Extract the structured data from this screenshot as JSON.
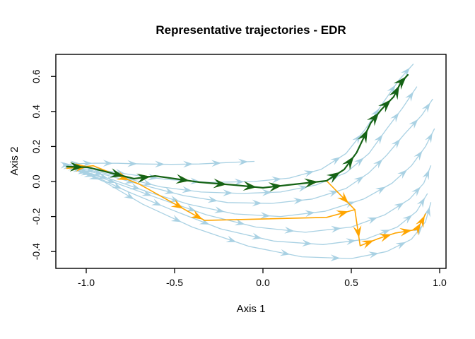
{
  "chart_data": {
    "type": "line",
    "title": "Representative trajectories - EDR",
    "xlabel": "Axis 1",
    "ylabel": "Axis 2",
    "xlim": [
      -1.172,
      1.036
    ],
    "ylim": [
      -0.496,
      0.726
    ],
    "grid": false,
    "legend": "none",
    "xticks": {
      "values": [
        -1.0,
        -0.5,
        0.0,
        0.5,
        1.0
      ],
      "labels": [
        "-1.0",
        "-0.5",
        "0.0",
        "0.5",
        "1.0"
      ]
    },
    "yticks": {
      "values": [
        -0.4,
        -0.2,
        0.0,
        0.2,
        0.4,
        0.6
      ],
      "labels": [
        "-0.4",
        "-0.2",
        "0.0",
        "0.2",
        "0.4",
        "0.6"
      ]
    },
    "colors": {
      "background": "#ffffff",
      "axis": "#000000",
      "regular_trajectory": "#A9D1E3",
      "highlight_green": "#156315",
      "highlight_orange": "#FFA500"
    },
    "series": [
      {
        "name": "trajectory-1",
        "role": "regular",
        "points": [
          [
            -1.13,
            0.095
          ],
          [
            -1.08,
            0.1
          ],
          [
            -1.02,
            0.103
          ],
          [
            -0.95,
            0.105
          ],
          [
            -0.82,
            0.104
          ],
          [
            -0.68,
            0.1
          ],
          [
            -0.52,
            0.098
          ],
          [
            -0.36,
            0.1
          ],
          [
            -0.2,
            0.108
          ],
          [
            -0.05,
            0.115
          ]
        ]
      },
      {
        "name": "trajectory-2",
        "role": "regular",
        "points": [
          [
            -1.12,
            0.088
          ],
          [
            -1.06,
            0.082
          ],
          [
            -0.98,
            0.076
          ],
          [
            -0.88,
            0.06
          ],
          [
            -0.75,
            0.04
          ],
          [
            -0.55,
            0.012
          ],
          [
            -0.3,
            -0.005
          ],
          [
            -0.05,
            0.0
          ],
          [
            0.15,
            0.02
          ],
          [
            0.33,
            0.07
          ],
          [
            0.47,
            0.16
          ],
          [
            0.58,
            0.3
          ],
          [
            0.68,
            0.45
          ],
          [
            0.77,
            0.58
          ],
          [
            0.85,
            0.67
          ]
        ]
      },
      {
        "name": "trajectory-3",
        "role": "regular",
        "points": [
          [
            -1.1,
            0.082
          ],
          [
            -1.03,
            0.072
          ],
          [
            -0.93,
            0.055
          ],
          [
            -0.78,
            0.02
          ],
          [
            -0.58,
            -0.03
          ],
          [
            -0.35,
            -0.06
          ],
          [
            -0.12,
            -0.068
          ],
          [
            0.1,
            -0.06
          ],
          [
            0.3,
            -0.02
          ],
          [
            0.47,
            0.05
          ],
          [
            0.6,
            0.16
          ],
          [
            0.7,
            0.3
          ],
          [
            0.79,
            0.42
          ],
          [
            0.87,
            0.54
          ]
        ]
      },
      {
        "name": "trajectory-4",
        "role": "regular",
        "points": [
          [
            -1.08,
            0.075
          ],
          [
            -1.0,
            0.06
          ],
          [
            -0.88,
            0.035
          ],
          [
            -0.68,
            -0.02
          ],
          [
            -0.45,
            -0.08
          ],
          [
            -0.2,
            -0.12
          ],
          [
            0.05,
            -0.125
          ],
          [
            0.28,
            -0.1
          ],
          [
            0.47,
            -0.04
          ],
          [
            0.6,
            0.05
          ],
          [
            0.7,
            0.15
          ],
          [
            0.8,
            0.27
          ],
          [
            0.9,
            0.38
          ],
          [
            0.96,
            0.47
          ]
        ]
      },
      {
        "name": "trajectory-5",
        "role": "regular",
        "points": [
          [
            -1.06,
            0.065
          ],
          [
            -0.97,
            0.045
          ],
          [
            -0.85,
            0.01
          ],
          [
            -0.65,
            -0.06
          ],
          [
            -0.42,
            -0.13
          ],
          [
            -0.16,
            -0.185
          ],
          [
            0.1,
            -0.2
          ],
          [
            0.35,
            -0.17
          ],
          [
            0.57,
            -0.1
          ],
          [
            0.73,
            -0.01
          ],
          [
            0.84,
            0.09
          ],
          [
            0.92,
            0.2
          ],
          [
            0.97,
            0.3
          ]
        ]
      },
      {
        "name": "trajectory-6",
        "role": "regular",
        "points": [
          [
            -1.05,
            0.06
          ],
          [
            -0.95,
            0.035
          ],
          [
            -0.8,
            -0.02
          ],
          [
            -0.58,
            -0.1
          ],
          [
            -0.32,
            -0.19
          ],
          [
            -0.04,
            -0.26
          ],
          [
            0.24,
            -0.29
          ],
          [
            0.5,
            -0.26
          ],
          [
            0.69,
            -0.19
          ],
          [
            0.83,
            -0.1
          ],
          [
            0.91,
            -0.01
          ],
          [
            0.95,
            0.09
          ]
        ]
      },
      {
        "name": "trajectory-7",
        "role": "regular",
        "points": [
          [
            -1.04,
            0.055
          ],
          [
            -0.93,
            0.02
          ],
          [
            -0.76,
            -0.06
          ],
          [
            -0.52,
            -0.16
          ],
          [
            -0.24,
            -0.27
          ],
          [
            0.06,
            -0.34
          ],
          [
            0.34,
            -0.36
          ],
          [
            0.58,
            -0.33
          ],
          [
            0.76,
            -0.26
          ],
          [
            0.87,
            -0.17
          ],
          [
            0.93,
            -0.07
          ]
        ]
      },
      {
        "name": "trajectory-8",
        "role": "regular",
        "points": [
          [
            -1.02,
            0.05
          ],
          [
            -0.9,
            0.0
          ],
          [
            -0.68,
            -0.13
          ],
          [
            -0.4,
            -0.26
          ],
          [
            -0.08,
            -0.37
          ],
          [
            0.22,
            -0.43
          ],
          [
            0.5,
            -0.44
          ],
          [
            0.7,
            -0.4
          ],
          [
            0.84,
            -0.33
          ],
          [
            0.92,
            -0.23
          ],
          [
            0.95,
            -0.12
          ]
        ]
      },
      {
        "name": "representative-orange-1",
        "role": "highlight-orange",
        "points": [
          [
            -1.11,
            0.075
          ],
          [
            -0.96,
            0.09
          ],
          [
            -0.7,
            -0.015
          ],
          [
            -0.38,
            -0.195
          ],
          [
            -0.33,
            -0.222
          ],
          [
            0.36,
            -0.205
          ],
          [
            0.52,
            -0.161
          ]
        ]
      },
      {
        "name": "representative-orange-2",
        "role": "highlight-orange",
        "points": [
          [
            -1.11,
            0.085
          ],
          [
            -0.99,
            0.081
          ],
          [
            -0.73,
            0.016
          ],
          [
            -0.61,
            0.032
          ],
          [
            -0.36,
            -0.004
          ],
          [
            -0.16,
            -0.02
          ],
          [
            0.0,
            -0.036
          ],
          [
            0.14,
            -0.02
          ],
          [
            0.36,
            0.004
          ],
          [
            0.52,
            -0.161
          ],
          [
            0.55,
            -0.367
          ],
          [
            0.65,
            -0.327
          ],
          [
            0.75,
            -0.294
          ],
          [
            0.87,
            -0.274
          ],
          [
            0.9,
            -0.226
          ],
          [
            0.92,
            -0.185
          ]
        ]
      },
      {
        "name": "representative-green",
        "role": "highlight-green",
        "points": [
          [
            -1.11,
            0.085
          ],
          [
            -0.99,
            0.081
          ],
          [
            -0.73,
            0.016
          ],
          [
            -0.61,
            0.032
          ],
          [
            -0.36,
            -0.004
          ],
          [
            -0.16,
            -0.02
          ],
          [
            0.0,
            -0.036
          ],
          [
            0.14,
            -0.02
          ],
          [
            0.36,
            0.004
          ],
          [
            0.46,
            0.069
          ],
          [
            0.53,
            0.165
          ],
          [
            0.61,
            0.335
          ],
          [
            0.67,
            0.411
          ],
          [
            0.74,
            0.484
          ],
          [
            0.78,
            0.565
          ],
          [
            0.82,
            0.609
          ]
        ]
      }
    ]
  }
}
